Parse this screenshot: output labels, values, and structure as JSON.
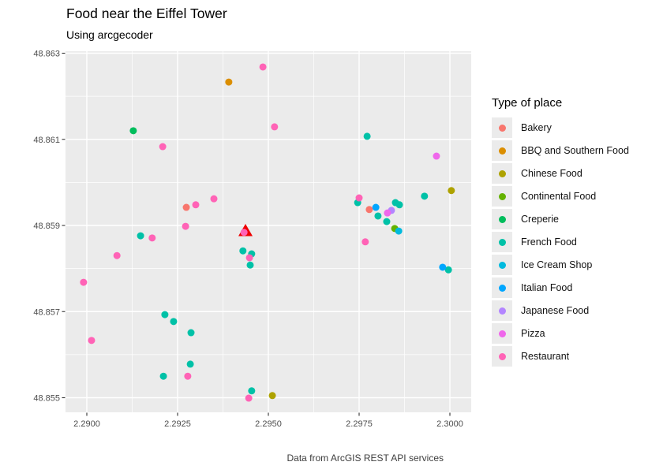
{
  "header": {
    "title": "Food near the Eiffel Tower",
    "subtitle": "Using arcgecoder"
  },
  "caption": "Data from ArcGIS REST API services",
  "legend": {
    "title": "Type of place"
  },
  "chart_data": {
    "type": "scatter",
    "title": "Food near the Eiffel Tower",
    "subtitle": "Using arcgecoder",
    "caption": "Data from ArcGIS REST API services",
    "xlabel": "",
    "ylabel": "",
    "grid": true,
    "legend_position": "right",
    "panel_color": "#EBEBEB",
    "gridline_color": "#FFFFFF",
    "axis_text_color": "#4D4D4D",
    "x_axis": {
      "range": [
        2.28938,
        2.30096
      ],
      "ticks": [
        2.29,
        2.2925,
        2.295,
        2.2975,
        2.3
      ],
      "labels": [
        "2.2900",
        "2.2925",
        "2.2950",
        "2.2975",
        "2.3000"
      ]
    },
    "y_axis": {
      "range": [
        48.85461,
        48.86305
      ],
      "ticks": [
        48.863,
        48.861,
        48.859,
        48.857,
        48.855
      ],
      "labels": [
        "48.863",
        "48.861",
        "48.859",
        "48.857",
        "48.855"
      ]
    },
    "series": [
      {
        "name": "Bakery",
        "color": "#F8766D",
        "points": [
          [
            2.29274,
            48.85942
          ],
          [
            2.29778,
            48.85937
          ]
        ]
      },
      {
        "name": "BBQ and Southern Food",
        "color": "#DB8E00",
        "points": [
          [
            2.29391,
            48.86233
          ]
        ]
      },
      {
        "name": "Chinese Food",
        "color": "#AEA200",
        "points": [
          [
            2.30004,
            48.85981
          ],
          [
            2.29511,
            48.85505
          ]
        ]
      },
      {
        "name": "Continental Food",
        "color": "#64B200",
        "points": [
          [
            2.29848,
            48.85893
          ]
        ]
      },
      {
        "name": "Creperie",
        "color": "#00BD5C",
        "points": [
          [
            2.29128,
            48.8612
          ]
        ]
      },
      {
        "name": "French Food",
        "color": "#00C1A7",
        "points": [
          [
            2.29148,
            48.85876
          ],
          [
            2.2943,
            48.85841
          ],
          [
            2.29454,
            48.85834
          ],
          [
            2.2945,
            48.85808
          ],
          [
            2.29215,
            48.85693
          ],
          [
            2.29239,
            48.85677
          ],
          [
            2.29287,
            48.85651
          ],
          [
            2.29285,
            48.85578
          ],
          [
            2.29211,
            48.8555
          ],
          [
            2.29454,
            48.85516
          ],
          [
            2.29772,
            48.86107
          ],
          [
            2.29746,
            48.85953
          ],
          [
            2.29802,
            48.85922
          ],
          [
            2.29826,
            48.85909
          ],
          [
            2.2985,
            48.85953
          ],
          [
            2.29861,
            48.85948
          ],
          [
            2.2993,
            48.85968
          ],
          [
            2.29996,
            48.85797
          ]
        ]
      },
      {
        "name": "Ice Cream Shop",
        "color": "#00BADE",
        "points": [
          [
            2.29859,
            48.85887
          ]
        ]
      },
      {
        "name": "Italian Food",
        "color": "#00A6FF",
        "points": [
          [
            2.29796,
            48.85942
          ],
          [
            2.2998,
            48.85803
          ]
        ]
      },
      {
        "name": "Japanese Food",
        "color": "#B385FF",
        "points": [
          [
            2.29839,
            48.85935
          ]
        ]
      },
      {
        "name": "Pizza",
        "color": "#EF67EB",
        "points": [
          [
            2.29828,
            48.85929
          ],
          [
            2.29963,
            48.86061
          ]
        ]
      },
      {
        "name": "Restaurant",
        "color": "#FF63B6",
        "points": [
          [
            2.29485,
            48.86268
          ],
          [
            2.29517,
            48.86129
          ],
          [
            2.29209,
            48.86083
          ],
          [
            2.2935,
            48.85962
          ],
          [
            2.293,
            48.85948
          ],
          [
            2.29272,
            48.85898
          ],
          [
            2.29433,
            48.85884
          ],
          [
            2.2918,
            48.85871
          ],
          [
            2.29083,
            48.8583
          ],
          [
            2.29448,
            48.85825
          ],
          [
            2.28991,
            48.85768
          ],
          [
            2.29013,
            48.85633
          ],
          [
            2.29278,
            48.8555
          ],
          [
            2.29446,
            48.85499
          ],
          [
            2.2975,
            48.85964
          ],
          [
            2.29767,
            48.85862
          ]
        ]
      }
    ],
    "annotation": {
      "name": "Eiffel Tower marker",
      "shape": "triangle",
      "color": "#EE0000",
      "point": [
        2.29437,
        48.8589
      ]
    }
  }
}
